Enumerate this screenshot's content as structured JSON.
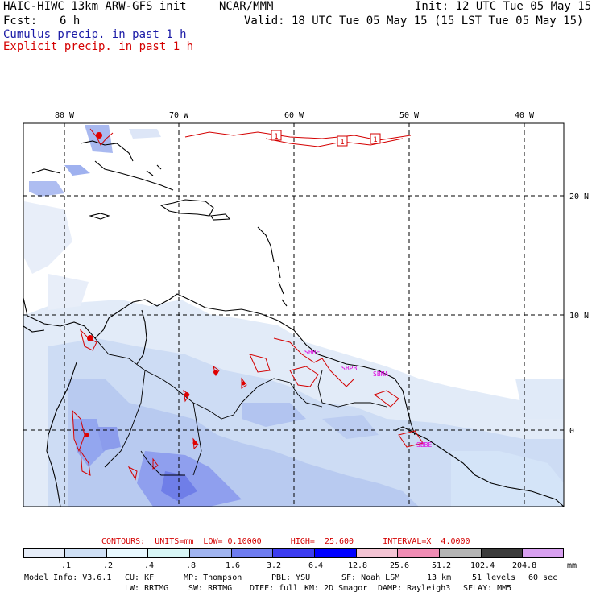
{
  "header": {
    "model_title": "HAIC-HIWC 13km ARW-GFS init",
    "org": "NCAR/MMM",
    "init": "Init: 12 UTC Tue 05 May 15",
    "fcst_label": "Fcst:",
    "fcst_value": "6 h",
    "valid": "Valid: 18 UTC Tue 05 May 15 (15 LST Tue 05 May 15)",
    "legend_cumulus": "Cumulus precip. in past 1 h",
    "legend_explicit": "Explicit precip. in past 1 h"
  },
  "map": {
    "lon_labels": [
      "80 W",
      "70 W",
      "60 W",
      "50 W",
      "40 W"
    ],
    "lat_labels": [
      "20 N",
      "10 N",
      "0"
    ],
    "contour_labels": [
      "1",
      "1",
      "1"
    ],
    "station_labels": [
      "SBBE",
      "SBPB",
      "SBMA",
      "SBBE"
    ]
  },
  "contours": {
    "line": "CONTOURS:  UNITS=mm  LOW= 0.10000      HIGH=  25.600      INTERVAL=X  4.0000"
  },
  "colorbar": {
    "labels": [
      ".1",
      ".2",
      ".4",
      ".8",
      "1.6",
      "3.2",
      "6.4",
      "12.8",
      "25.6",
      "51.2",
      "102.4",
      "204.8"
    ],
    "unit": "mm",
    "colors": [
      "#ffffff",
      "#e6edf8",
      "#cfe0f5",
      "#e8f8ff",
      "#d8f6f6",
      "#a0b4f0",
      "#6e7cf0",
      "#3c3cf0",
      "#0000ff",
      "#f4c4d4",
      "#f08cb4",
      "#b4b4b4",
      "#3c3c3c",
      "#d8a0f0"
    ]
  },
  "footer": {
    "row1": [
      "Model Info: V3.6.1",
      "CU: KF",
      "MP: Thompson",
      "PBL: YSU",
      "SF: Noah LSM",
      "13 km",
      "51 levels",
      "60 sec"
    ],
    "row2": [
      "LW: RRTMG",
      "SW: RRTMG",
      "DIFF: full",
      "KM: 2D Smagor",
      "DAMP: Rayleigh3",
      "SFLAY: MM5"
    ]
  }
}
